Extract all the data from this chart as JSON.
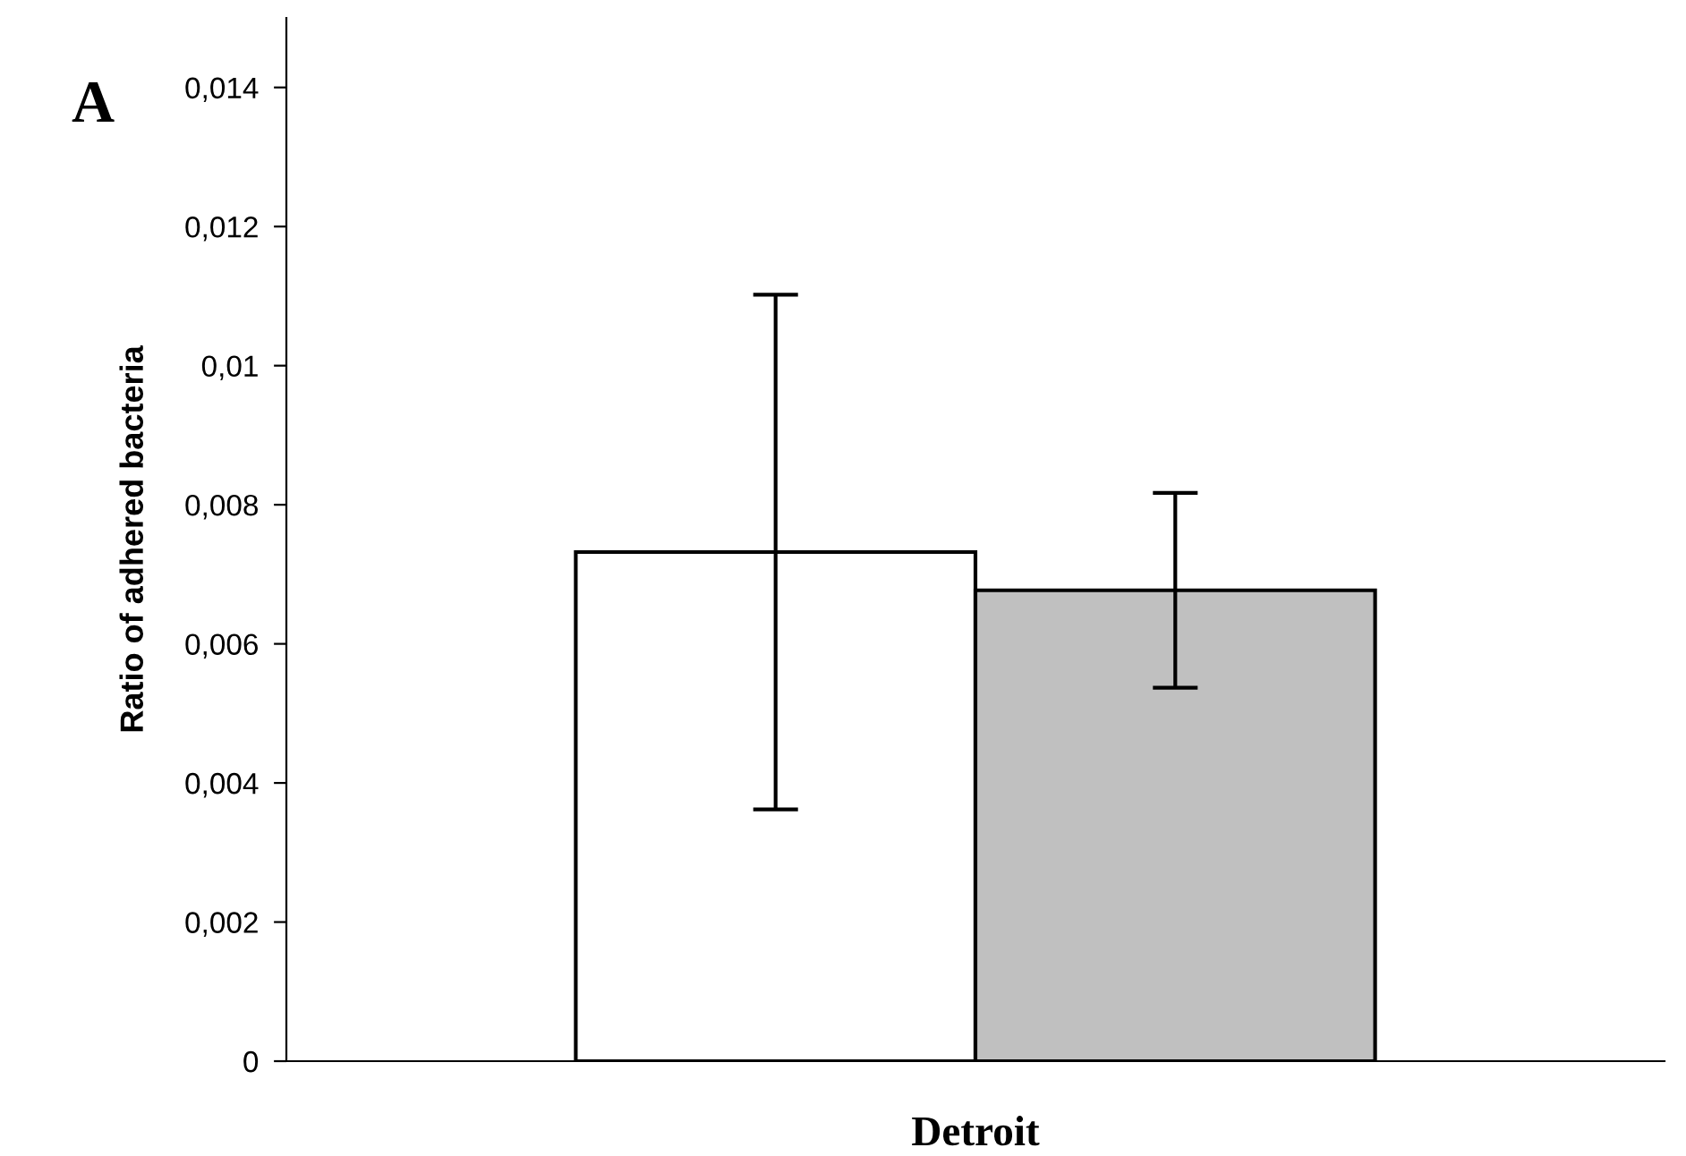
{
  "chart_data": {
    "type": "bar",
    "ylabel": "Ratio of adhered bacteria",
    "categories": [
      "Detroit"
    ],
    "series": [
      {
        "color": "#ffffff",
        "values": [
          0.00732
        ],
        "errors": [
          0.0037
        ]
      },
      {
        "color": "#c0c0c0",
        "values": [
          0.00677
        ],
        "errors": [
          0.0014
        ]
      }
    ],
    "ylim": [
      0,
      0.015
    ],
    "yticks": [
      0,
      {
        "value": 0.002,
        "label": "0,002"
      },
      {
        "value": 0.004,
        "label": "0,004"
      },
      {
        "value": 0.006,
        "label": "0,006"
      },
      {
        "value": 0.008,
        "label": "0,008"
      },
      {
        "value": 0.01,
        "label": "0,01"
      },
      {
        "value": 0.012,
        "label": "0,012"
      },
      {
        "value": 0.014,
        "label": "0,014"
      }
    ],
    "grid": false,
    "legend": false,
    "annotations": [
      "A"
    ]
  }
}
